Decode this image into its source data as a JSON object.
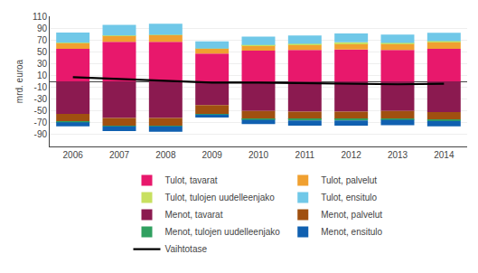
{
  "chart_data": {
    "type": "bar",
    "stacked": true,
    "ylabel": "mrd. euroa",
    "categories": [
      "2006",
      "2007",
      "2008",
      "2009",
      "2010",
      "2011",
      "2012",
      "2013",
      "2014"
    ],
    "series": [
      {
        "name": "Tulot, tavarat",
        "color": "#e8186c",
        "values": [
          55,
          67,
          67,
          47,
          52,
          53,
          54,
          53,
          55
        ]
      },
      {
        "name": "Tulot, palvelut",
        "color": "#f0a030",
        "values": [
          10,
          10,
          11,
          8,
          9,
          9,
          10,
          10,
          11
        ]
      },
      {
        "name": "Tulot, tulojen uudelleenjako",
        "color": "#c8e060",
        "values": [
          0.5,
          0.5,
          0.5,
          0.5,
          0.5,
          1.5,
          2,
          2,
          2
        ]
      },
      {
        "name": "Tulot, ensitulo",
        "color": "#70c8e8",
        "values": [
          17,
          18,
          19,
          12,
          14,
          14,
          15,
          14,
          14
        ]
      },
      {
        "name": "Menot, tavarat",
        "color": "#8b1a50",
        "values": [
          -55,
          -62,
          -62,
          -40,
          -50,
          -51,
          -51,
          -50,
          -52
        ]
      },
      {
        "name": "Menot, palvelut",
        "color": "#a05010",
        "values": [
          -13,
          -13,
          -13,
          -15,
          -14,
          -13,
          -13,
          -13,
          -13
        ]
      },
      {
        "name": "Menot, tulojen uudelleenjako",
        "color": "#30a060",
        "values": [
          -1,
          -1,
          -1,
          -1,
          -1,
          -2,
          -2,
          -2,
          -2
        ]
      },
      {
        "name": "Menot, ensitulo",
        "color": "#1060b0",
        "values": [
          -7,
          -8,
          -9,
          -5,
          -7,
          -9,
          -9,
          -9,
          -9
        ]
      },
      {
        "name": "Vaihtotase",
        "type": "line",
        "color": "#000000",
        "values": [
          7,
          4,
          2,
          -2,
          -2,
          -3,
          -4,
          -5,
          -4
        ]
      }
    ],
    "ylim": [
      -110,
      110
    ],
    "yticks": [
      -90,
      -70,
      -50,
      -30,
      -10,
      10,
      30,
      50,
      70,
      90,
      110
    ],
    "grid": true,
    "legend": "bottom"
  }
}
